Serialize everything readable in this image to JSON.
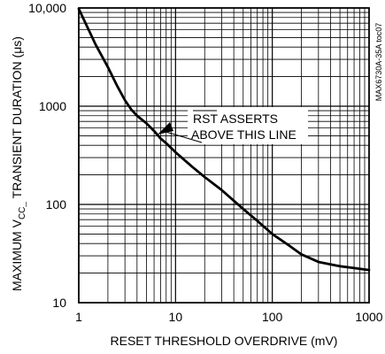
{
  "chart_data": {
    "type": "line",
    "title": "",
    "xlabel": "RESET THRESHOLD OVERDRIVE (mV)",
    "ylabel": {
      "prefix": "MAXIMUM V",
      "subscript": "CC_",
      "suffix": " TRANSIENT DURATION (μs)"
    },
    "x_scale": "log",
    "y_scale": "log",
    "xlim": [
      1,
      1000
    ],
    "ylim": [
      10,
      10000
    ],
    "x_ticks": [
      1,
      10,
      100,
      1000
    ],
    "x_tick_labels": [
      "1",
      "10",
      "100",
      "1000"
    ],
    "y_ticks": [
      10,
      100,
      1000,
      10000
    ],
    "y_tick_labels": [
      "10",
      "100",
      "1000",
      "10,000"
    ],
    "grid": true,
    "series": [
      {
        "color": "#000000",
        "x": [
          1,
          1.5,
          2,
          2.5,
          3,
          3.5,
          4,
          5,
          6,
          7,
          8,
          10,
          15,
          20,
          30,
          50,
          70,
          100,
          150,
          200,
          300,
          500,
          700,
          1000
        ],
        "y": [
          9800,
          4200,
          2500,
          1600,
          1150,
          920,
          800,
          670,
          560,
          470,
          420,
          340,
          240,
          190,
          140,
          90,
          68,
          50,
          38,
          31,
          26,
          23.5,
          22.5,
          21.5
        ]
      }
    ],
    "annotations": [
      {
        "lines": [
          "RST ASSERTS",
          "ABOVE THIS LINE"
        ],
        "overline": "RST",
        "arrow_to": {
          "x": 7,
          "y": 470
        }
      }
    ],
    "side_code": "MAX6730A-35A toc07"
  }
}
